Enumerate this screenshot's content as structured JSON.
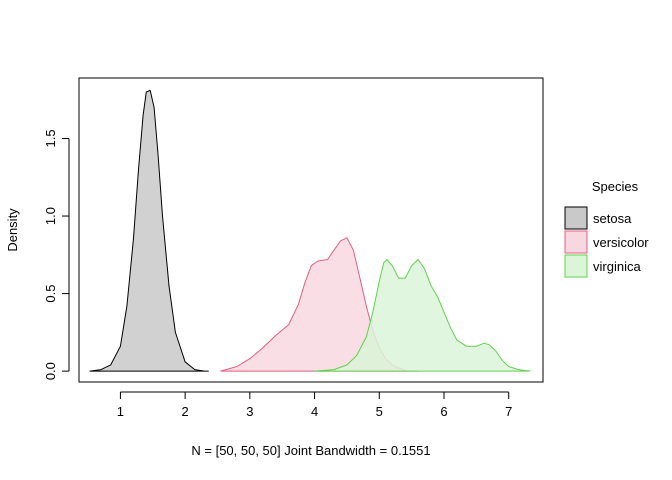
{
  "chart_data": {
    "type": "area",
    "title": "",
    "xlabel": "N = [50, 50, 50]   Joint Bandwidth = 0.1551",
    "ylabel": "Density",
    "xlim": [
      0.36,
      7.53
    ],
    "ylim": [
      -0.07,
      1.89
    ],
    "x_ticks": [
      1,
      2,
      3,
      4,
      5,
      6,
      7
    ],
    "x_tick_labels": [
      "1",
      "2",
      "3",
      "4",
      "5",
      "6",
      "7"
    ],
    "y_ticks": [
      0.0,
      0.5,
      1.0,
      1.5
    ],
    "y_tick_labels": [
      "0.0",
      "0.5",
      "1.0",
      "1.5"
    ],
    "grid": false,
    "legend": {
      "title": "Species",
      "placement": "right"
    },
    "series": [
      {
        "name": "setosa",
        "fill": "#c9c9c9",
        "stroke": "#000000",
        "x": [
          0.53,
          0.7,
          0.85,
          1.0,
          1.1,
          1.2,
          1.28,
          1.35,
          1.4,
          1.46,
          1.52,
          1.58,
          1.65,
          1.75,
          1.85,
          2.0,
          2.15,
          2.3,
          2.36
        ],
        "y": [
          0.0,
          0.01,
          0.04,
          0.16,
          0.42,
          0.85,
          1.3,
          1.65,
          1.8,
          1.81,
          1.7,
          1.4,
          1.0,
          0.55,
          0.25,
          0.06,
          0.01,
          0.0,
          0.0
        ]
      },
      {
        "name": "versicolor",
        "fill": "#f8d8e0",
        "stroke": "#e0607e",
        "x": [
          2.55,
          2.8,
          3.0,
          3.2,
          3.4,
          3.6,
          3.75,
          3.85,
          3.95,
          4.05,
          4.2,
          4.3,
          4.4,
          4.5,
          4.6,
          4.7,
          4.8,
          4.9,
          5.0,
          5.1,
          5.2,
          5.3,
          5.45,
          5.6
        ],
        "y": [
          0.0,
          0.03,
          0.08,
          0.15,
          0.23,
          0.3,
          0.43,
          0.57,
          0.68,
          0.71,
          0.72,
          0.78,
          0.84,
          0.86,
          0.78,
          0.6,
          0.42,
          0.26,
          0.15,
          0.08,
          0.04,
          0.02,
          0.0,
          0.0
        ]
      },
      {
        "name": "virginica",
        "fill": "#dcf4d8",
        "stroke": "#61d04f",
        "x": [
          4.0,
          4.3,
          4.5,
          4.65,
          4.8,
          4.9,
          5.0,
          5.07,
          5.12,
          5.2,
          5.3,
          5.4,
          5.5,
          5.6,
          5.7,
          5.8,
          5.9,
          6.0,
          6.1,
          6.2,
          6.35,
          6.5,
          6.62,
          6.7,
          6.8,
          6.9,
          7.0,
          7.15,
          7.33
        ],
        "y": [
          0.0,
          0.01,
          0.04,
          0.1,
          0.22,
          0.38,
          0.58,
          0.7,
          0.72,
          0.68,
          0.6,
          0.6,
          0.68,
          0.72,
          0.66,
          0.55,
          0.48,
          0.38,
          0.28,
          0.2,
          0.16,
          0.16,
          0.18,
          0.17,
          0.13,
          0.07,
          0.03,
          0.01,
          0.0
        ]
      }
    ]
  }
}
